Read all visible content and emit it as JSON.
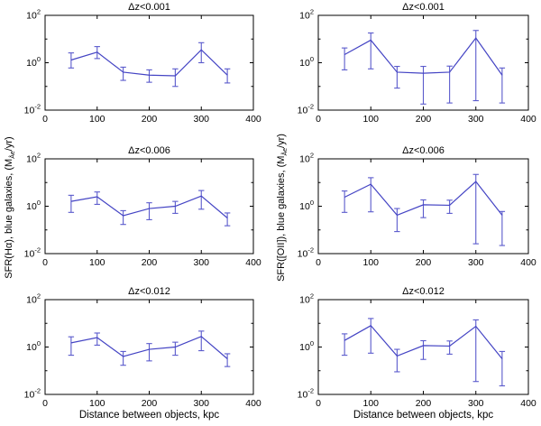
{
  "figure": {
    "xlabel": "Distance between objects, kpc",
    "ylabel_left": {
      "pre": "SFR(Hα), blue galaxies, (M",
      "sub": "Åe",
      "post": "/yr)"
    },
    "ylabel_right": {
      "pre": "SFR([OII]), blue galaxies, (M",
      "sub": "Åe",
      "post": "/yr)"
    },
    "axis": {
      "x_ticks": [
        0,
        100,
        200,
        300,
        400
      ],
      "y_tick_exponents": [
        2,
        0,
        -2
      ],
      "y_minor_exponents": [
        1,
        -1
      ],
      "y_tick_base": "10"
    },
    "colors": {
      "line": "#4444c4",
      "errorbar": "#5a5acc",
      "axis": "#000000",
      "background": "#ffffff"
    }
  },
  "chart_data": [
    {
      "type": "line",
      "title": "Δz<0.001",
      "xlabel": "Distance between objects, kpc",
      "ylabel": "SFR(Hα), blue galaxies, (M_Åe/yr)",
      "yscale": "log",
      "xlim": [
        0,
        400
      ],
      "ylim": [
        0.01,
        100
      ],
      "x": [
        50,
        100,
        150,
        200,
        250,
        300,
        350
      ],
      "values": [
        1.3,
        2.8,
        0.4,
        0.3,
        0.28,
        3.5,
        0.3
      ],
      "err_lo": [
        0.6,
        1.5,
        0.18,
        0.15,
        0.1,
        1.0,
        0.14
      ],
      "err_hi": [
        2.6,
        4.8,
        0.65,
        0.5,
        0.55,
        7.0,
        0.55
      ]
    },
    {
      "type": "line",
      "title": "Δz<0.001",
      "xlabel": "Distance between objects, kpc",
      "ylabel": "SFR([OII]), blue galaxies, (M_Åe/yr)",
      "yscale": "log",
      "xlim": [
        0,
        400
      ],
      "ylim": [
        0.01,
        100
      ],
      "x": [
        50,
        100,
        150,
        200,
        250,
        300,
        350
      ],
      "values": [
        2.2,
        9.0,
        0.4,
        0.36,
        0.4,
        11.0,
        0.3
      ],
      "err_lo": [
        0.5,
        0.55,
        0.085,
        0.018,
        0.02,
        0.025,
        0.02
      ],
      "err_hi": [
        4.2,
        18.0,
        0.7,
        0.7,
        0.72,
        23.0,
        0.6
      ]
    },
    {
      "type": "line",
      "title": "Δz<0.006",
      "xlabel": "Distance between objects, kpc",
      "ylabel": "SFR(Hα), blue galaxies, (M_Åe/yr)",
      "yscale": "log",
      "xlim": [
        0,
        400
      ],
      "ylim": [
        0.01,
        100
      ],
      "x": [
        50,
        100,
        150,
        200,
        250,
        300,
        350
      ],
      "values": [
        1.6,
        2.5,
        0.4,
        0.8,
        1.0,
        2.7,
        0.32
      ],
      "err_lo": [
        0.55,
        1.2,
        0.17,
        0.27,
        0.5,
        0.75,
        0.15
      ],
      "err_hi": [
        2.9,
        4.0,
        0.65,
        1.4,
        1.6,
        4.6,
        0.52
      ]
    },
    {
      "type": "line",
      "title": "Δz<0.006",
      "xlabel": "Distance between objects, kpc",
      "ylabel": "SFR([OII]), blue galaxies, (M_Åe/yr)",
      "yscale": "log",
      "xlim": [
        0,
        400
      ],
      "ylim": [
        0.01,
        100
      ],
      "x": [
        50,
        100,
        150,
        200,
        250,
        300,
        350
      ],
      "values": [
        2.4,
        8.5,
        0.42,
        1.15,
        1.1,
        11.0,
        0.42
      ],
      "err_lo": [
        0.55,
        0.58,
        0.085,
        0.33,
        0.5,
        0.026,
        0.022
      ],
      "err_hi": [
        4.4,
        16.0,
        0.8,
        1.85,
        1.8,
        22.0,
        0.6
      ]
    },
    {
      "type": "line",
      "title": "Δz<0.012",
      "xlabel": "Distance between objects, kpc",
      "ylabel": "SFR(Hα), blue galaxies, (M_Åe/yr)",
      "yscale": "log",
      "xlim": [
        0,
        400
      ],
      "ylim": [
        0.01,
        100
      ],
      "x": [
        50,
        100,
        150,
        200,
        250,
        300,
        350
      ],
      "values": [
        1.5,
        2.5,
        0.4,
        0.8,
        1.0,
        2.8,
        0.32
      ],
      "err_lo": [
        0.45,
        1.2,
        0.17,
        0.26,
        0.45,
        0.7,
        0.15
      ],
      "err_hi": [
        2.7,
        3.9,
        0.65,
        1.4,
        1.6,
        4.7,
        0.52
      ]
    },
    {
      "type": "line",
      "title": "Δz<0.012",
      "xlabel": "Distance between objects, kpc",
      "ylabel": "SFR([OII]), blue galaxies, (M_Åe/yr)",
      "yscale": "log",
      "xlim": [
        0,
        400
      ],
      "ylim": [
        0.01,
        100
      ],
      "x": [
        50,
        100,
        150,
        200,
        250,
        300,
        350
      ],
      "values": [
        1.9,
        8.0,
        0.42,
        1.15,
        1.1,
        7.5,
        0.32
      ],
      "err_lo": [
        0.45,
        0.55,
        0.09,
        0.3,
        0.5,
        0.035,
        0.023
      ],
      "err_hi": [
        3.6,
        16.0,
        0.8,
        1.85,
        1.8,
        14.0,
        0.65
      ]
    }
  ]
}
